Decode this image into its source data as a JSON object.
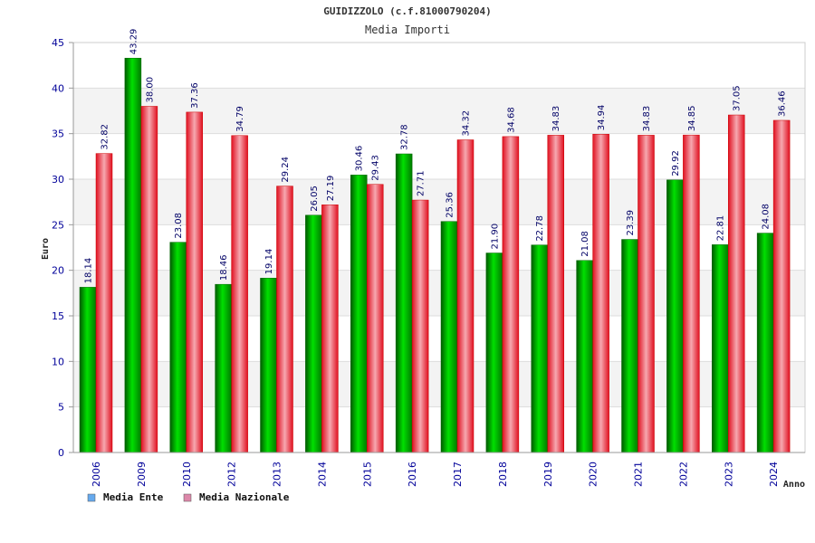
{
  "chart_data": {
    "type": "bar",
    "title": "GUIDIZZOLO (c.f.81000790204)",
    "subtitle": "Media Importi",
    "xlabel": "Anno",
    "ylabel": "Euro",
    "ylim": [
      0,
      45
    ],
    "yticks": [
      0,
      5,
      10,
      15,
      20,
      25,
      30,
      35,
      40,
      45
    ],
    "grid": true,
    "legend_position": "bottom-left",
    "categories": [
      "2006",
      "2009",
      "2010",
      "2012",
      "2013",
      "2014",
      "2015",
      "2016",
      "2017",
      "2018",
      "2019",
      "2020",
      "2021",
      "2022",
      "2023",
      "2024"
    ],
    "series": [
      {
        "name": "Media Ente",
        "color": "#00b000",
        "legend_color": "#66aaee",
        "values": [
          18.14,
          43.29,
          23.08,
          18.46,
          19.14,
          26.05,
          30.46,
          32.78,
          25.36,
          21.9,
          22.78,
          21.08,
          23.39,
          29.92,
          22.81,
          24.08
        ],
        "labels": [
          "18.14",
          "43.29",
          "23.08",
          "18.46",
          "19.14",
          "26.05",
          "30.46",
          "32.78",
          "25.36",
          "21.90",
          "22.78",
          "21.08",
          "23.39",
          "29.92",
          "22.81",
          "24.08"
        ]
      },
      {
        "name": "Media Nazionale",
        "color": "#ee2030",
        "legend_color": "#dd88aa",
        "values": [
          32.82,
          38.0,
          37.36,
          34.79,
          29.24,
          27.19,
          29.43,
          27.71,
          34.32,
          34.68,
          34.83,
          34.94,
          34.83,
          34.85,
          37.05,
          36.46
        ],
        "labels": [
          "32.82",
          "38.00",
          "37.36",
          "34.79",
          "29.24",
          "27.19",
          "29.43",
          "27.71",
          "34.32",
          "34.68",
          "34.83",
          "34.94",
          "34.83",
          "34.85",
          "37.05",
          "36.46"
        ]
      }
    ]
  }
}
